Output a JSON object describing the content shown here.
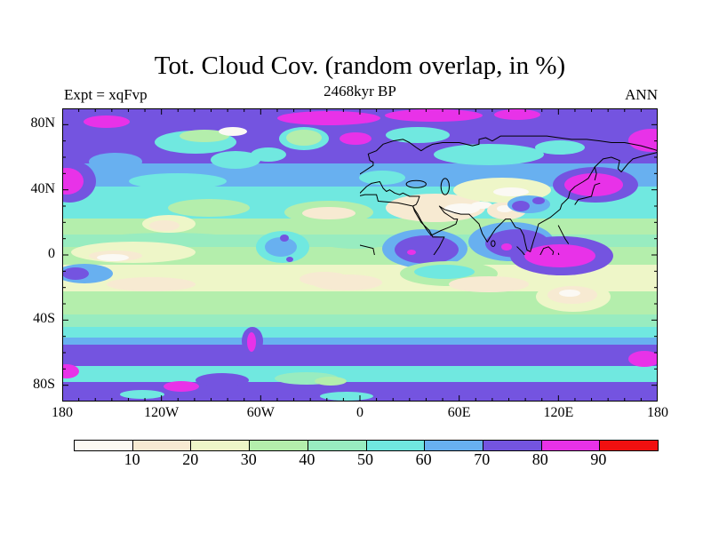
{
  "header": {
    "title": "Tot. Cloud Cov. (random overlap, in %)",
    "subtitle": "2468kyr BP",
    "experiment_label": "Expt = xqFvp",
    "season_label": "ANN"
  },
  "chart_data": {
    "type": "heatmap",
    "subtype": "filled-contour global map, equirectangular projection",
    "title": "Tot. Cloud Cov. (random overlap, in %)",
    "subtitle": "2468kyr BP",
    "annotations": {
      "top_left": "Expt = xqFvp",
      "top_right": "ANN"
    },
    "variable": "Total cloud cover (random overlap)",
    "units": "%",
    "x_axis": {
      "range_deg": [
        -180,
        180
      ],
      "minor_step_deg": 10,
      "major_step_deg": 60,
      "ticks": [
        {
          "lon": -180,
          "label": "180"
        },
        {
          "lon": -120,
          "label": "120W"
        },
        {
          "lon": -60,
          "label": "60W"
        },
        {
          "lon": 0,
          "label": "0"
        },
        {
          "lon": 60,
          "label": "60E"
        },
        {
          "lon": 120,
          "label": "120E"
        },
        {
          "lon": 180,
          "label": "180"
        }
      ]
    },
    "y_axis": {
      "range_deg": [
        -90,
        90
      ],
      "minor_step_deg": 10,
      "major_step_deg": 40,
      "ticks": [
        {
          "lat": 80,
          "label": "80N"
        },
        {
          "lat": 40,
          "label": "40N"
        },
        {
          "lat": 0,
          "label": "0"
        },
        {
          "lat": -40,
          "label": "40S"
        },
        {
          "lat": -80,
          "label": "80S"
        }
      ]
    },
    "colorbar": {
      "levels": [
        0,
        10,
        20,
        30,
        40,
        50,
        60,
        70,
        80,
        90,
        100
      ],
      "tick_labels": [
        "10",
        "20",
        "30",
        "40",
        "50",
        "60",
        "70",
        "80",
        "90"
      ],
      "colors": [
        "#fbf9f4",
        "#f7ead2",
        "#eef6c8",
        "#b4eeac",
        "#98ecc0",
        "#70e8e0",
        "#68b0f0",
        "#7454e0",
        "#e832e8",
        "#f01010"
      ]
    },
    "features": [
      {
        "region": "Arctic Ocean and high northern latitudes",
        "cloud_cover_pct": "70-90"
      },
      {
        "region": "NW Pacific storm track near Japan/Kamchatka",
        "cloud_cover_pct": "80-90"
      },
      {
        "region": "Sahara, Arabia and Central Asian deserts",
        "cloud_cover_pct": "0-20"
      },
      {
        "region": "Subtropical oceans (both hemispheres)",
        "cloud_cover_pct": "10-30"
      },
      {
        "region": "Equatorial Atlantic and Indian Ocean",
        "cloud_cover_pct": "70-80"
      },
      {
        "region": "Indonesia / Maritime Continent",
        "cloud_cover_pct": "80-90"
      },
      {
        "region": "Southern Ocean storm track 50S-70S",
        "cloud_cover_pct": "70-80"
      },
      {
        "region": "Antarctic coastal ring",
        "cloud_cover_pct": "50-60"
      }
    ]
  }
}
